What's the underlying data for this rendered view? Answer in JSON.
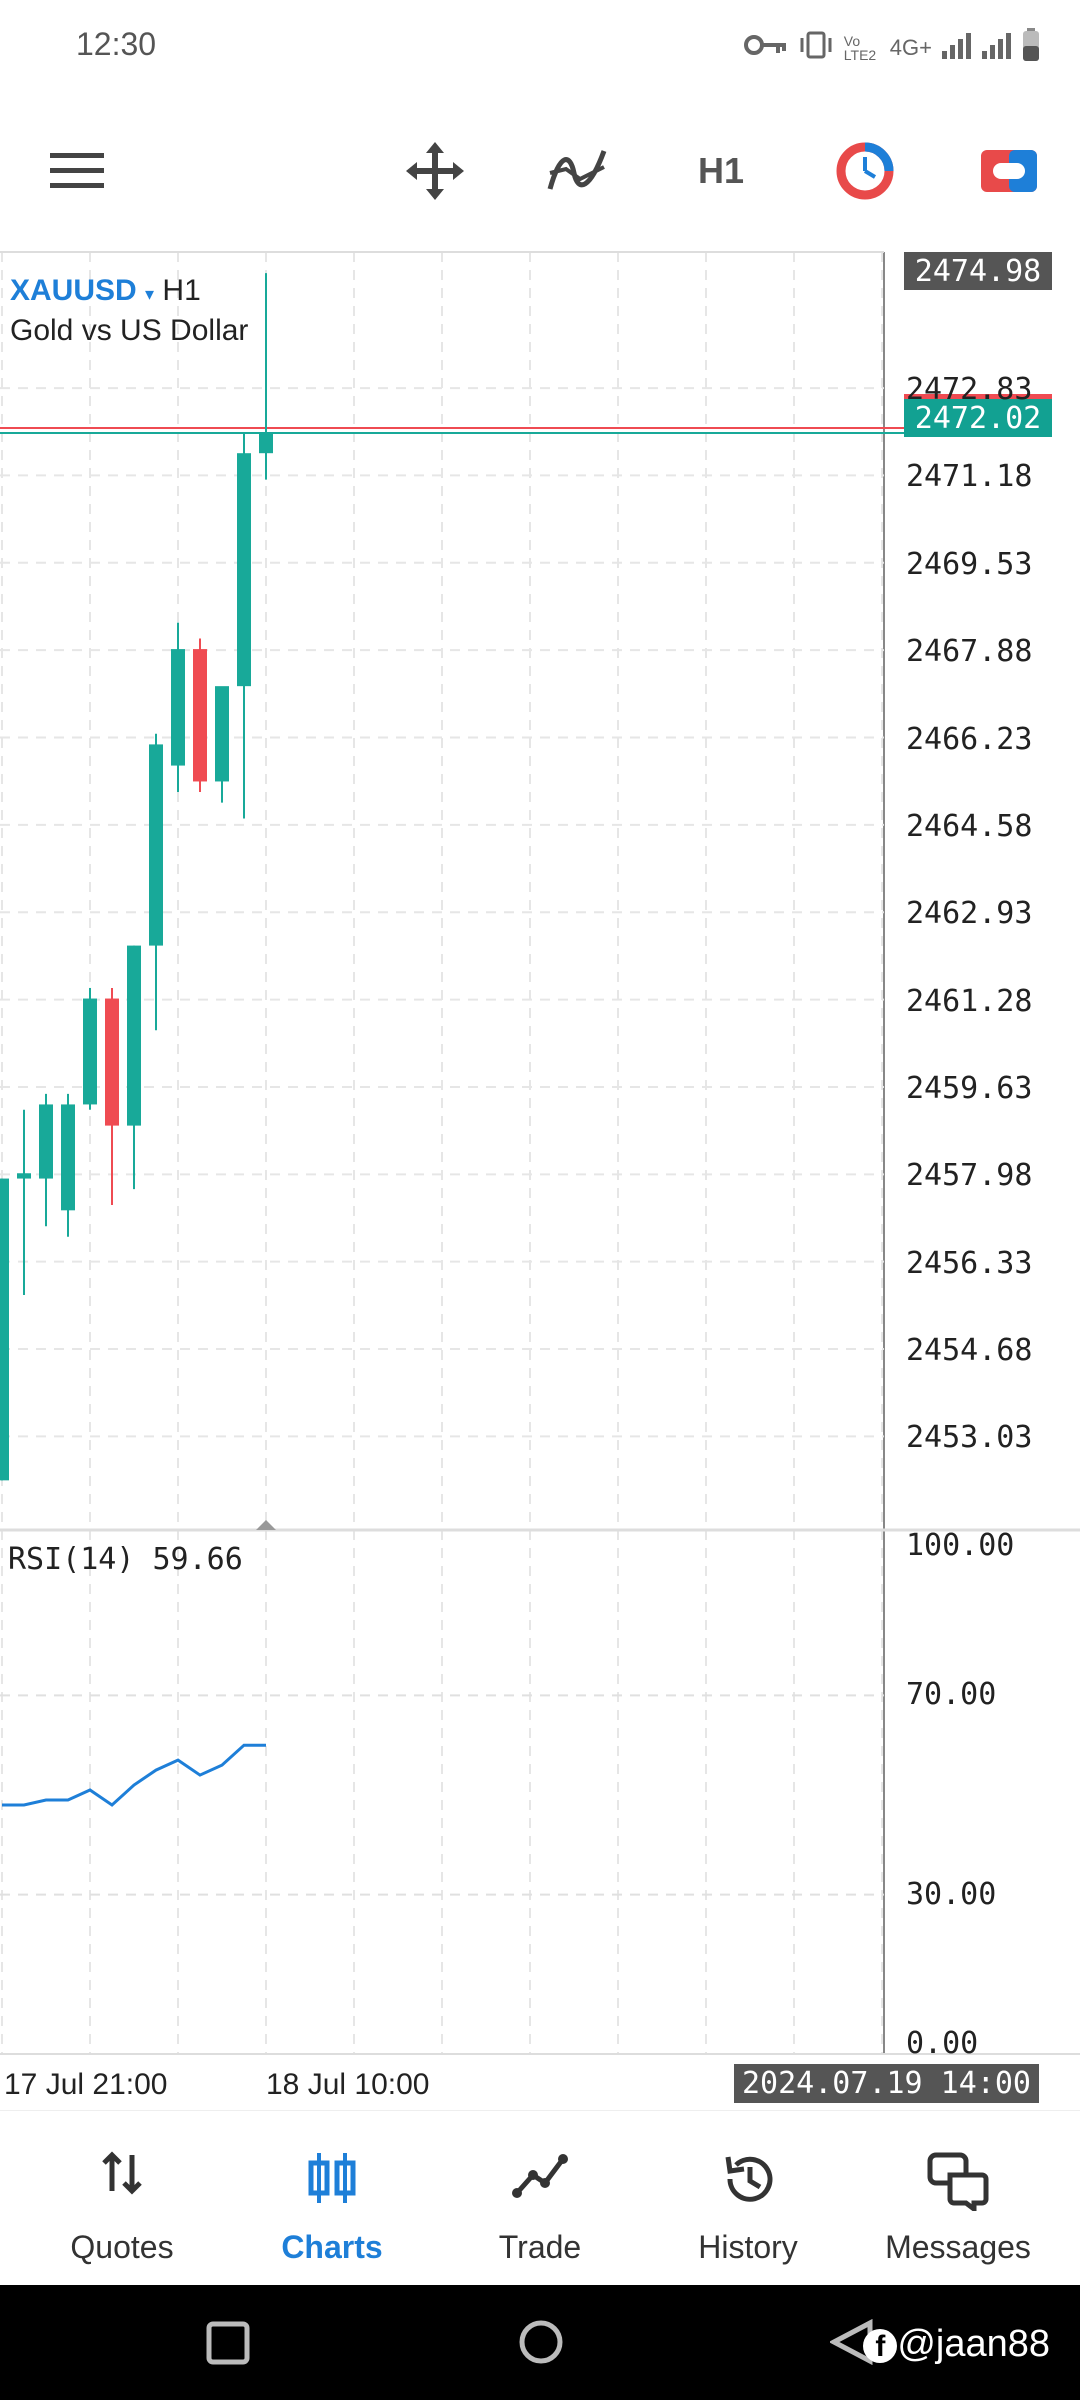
{
  "status": {
    "time": "12:30",
    "network": "4G+",
    "volte": "Vo LTE2"
  },
  "toolbar": {
    "timeframe": "H1"
  },
  "symbol": {
    "name": "XAUUSD",
    "dropdown": "▾",
    "timeframe": "H1",
    "description": "Gold vs US Dollar"
  },
  "price_axis": {
    "top_box": "2474.98",
    "current": "2472.02",
    "labels": [
      "2472.83",
      "2471.18",
      "2469.53",
      "2467.88",
      "2466.23",
      "2464.58",
      "2462.93",
      "2461.28",
      "2459.63",
      "2457.98",
      "2456.33",
      "2454.68",
      "2453.03"
    ]
  },
  "rsi": {
    "label": "RSI(14) 59.66",
    "levels": [
      "100.00",
      "70.00",
      "30.00",
      "0.00"
    ]
  },
  "time_axis": {
    "left": "17 Jul 21:00",
    "mid": "18 Jul 10:00",
    "cursor": "2024.07.19 14:00"
  },
  "chart_data": [
    {
      "type": "candlestick",
      "title": "XAUUSD H1",
      "ylim": [
        2451.3,
        2475.4
      ],
      "candles": [
        {
          "o": 2452.2,
          "h": 2457.9,
          "l": 2452.2,
          "c": 2457.9,
          "dir": "up"
        },
        {
          "o": 2457.9,
          "h": 2459.2,
          "l": 2455.7,
          "c": 2458.0,
          "dir": "up"
        },
        {
          "o": 2457.9,
          "h": 2459.5,
          "l": 2457.0,
          "c": 2459.3,
          "dir": "up"
        },
        {
          "o": 2457.3,
          "h": 2459.5,
          "l": 2456.8,
          "c": 2459.3,
          "dir": "up"
        },
        {
          "o": 2459.3,
          "h": 2461.5,
          "l": 2459.2,
          "c": 2461.3,
          "dir": "up"
        },
        {
          "o": 2461.3,
          "h": 2461.5,
          "l": 2457.4,
          "c": 2458.9,
          "dir": "down"
        },
        {
          "o": 2458.9,
          "h": 2462.3,
          "l": 2457.7,
          "c": 2462.3,
          "dir": "up"
        },
        {
          "o": 2462.3,
          "h": 2466.3,
          "l": 2460.7,
          "c": 2466.1,
          "dir": "up"
        },
        {
          "o": 2465.7,
          "h": 2468.4,
          "l": 2465.2,
          "c": 2467.9,
          "dir": "up"
        },
        {
          "o": 2467.9,
          "h": 2468.1,
          "l": 2465.2,
          "c": 2465.4,
          "dir": "down"
        },
        {
          "o": 2465.4,
          "h": 2467.1,
          "l": 2465.0,
          "c": 2467.2,
          "dir": "up"
        },
        {
          "o": 2467.2,
          "h": 2472.0,
          "l": 2464.7,
          "c": 2471.6,
          "dir": "up"
        },
        {
          "o": 2471.6,
          "h": 2475.0,
          "l": 2471.1,
          "c": 2472.0,
          "dir": "up"
        }
      ]
    },
    {
      "type": "line",
      "title": "RSI(14)",
      "ylim": [
        0,
        100
      ],
      "values": [
        48,
        48,
        49,
        49,
        51,
        48,
        52,
        55,
        57,
        54,
        56,
        60,
        60
      ]
    }
  ],
  "nav": {
    "quotes": "Quotes",
    "charts": "Charts",
    "trade": "Trade",
    "history": "History",
    "messages": "Messages"
  },
  "watermark": "@jaan88",
  "colors": {
    "up": "#18a999",
    "down": "#ef4b52",
    "accent": "#1e7fd8",
    "price_box": "#12a192"
  }
}
